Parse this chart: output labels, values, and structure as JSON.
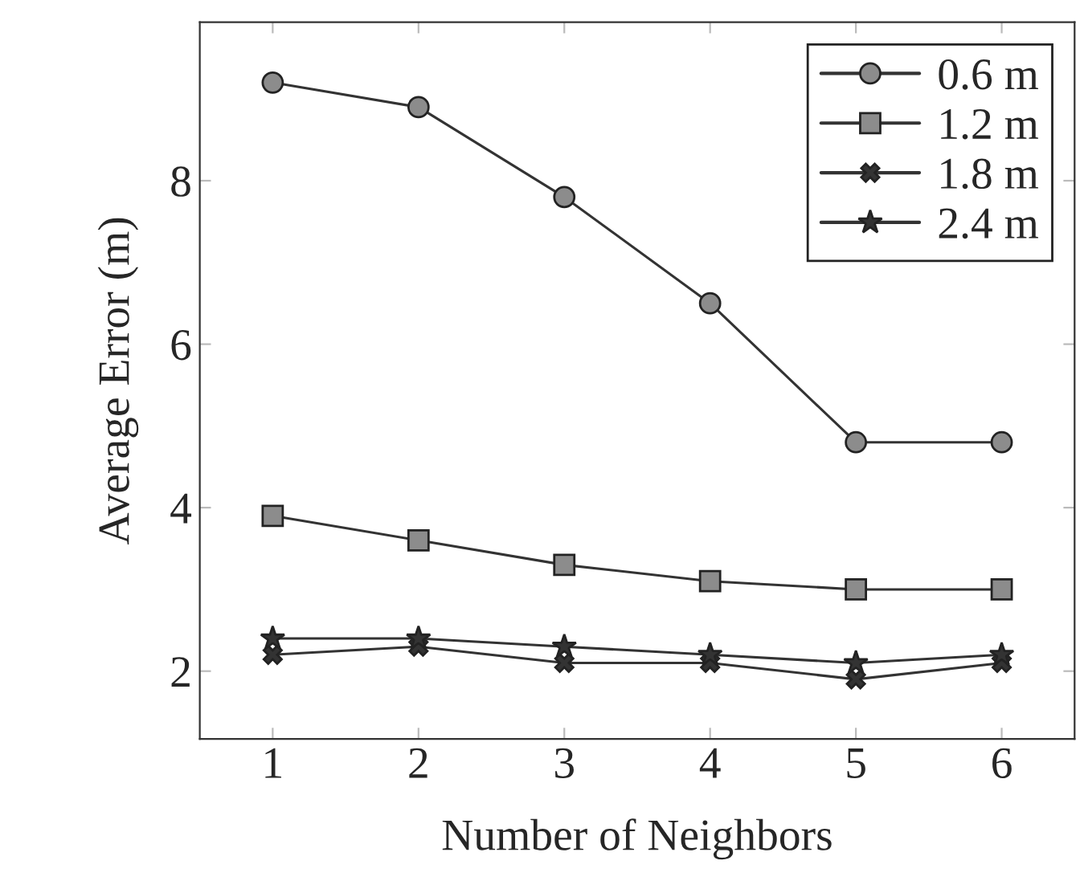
{
  "chart_data": {
    "type": "line",
    "xlabel": "Number of Neighbors",
    "ylabel": "Average Error (m)",
    "x": [
      1,
      2,
      3,
      4,
      5,
      6
    ],
    "series": [
      {
        "name": "0.6 m",
        "color": "#333333",
        "marker": "circle",
        "values": [
          9.2,
          8.9,
          7.8,
          6.5,
          4.8,
          4.8
        ]
      },
      {
        "name": "1.2 m",
        "color": "#333333",
        "marker": "square",
        "values": [
          3.9,
          3.6,
          3.3,
          3.1,
          3.0,
          3.0
        ]
      },
      {
        "name": "1.8 m",
        "color": "#333333",
        "marker": "cross",
        "values": [
          2.2,
          2.3,
          2.1,
          2.1,
          1.9,
          2.1
        ]
      },
      {
        "name": "2.4 m",
        "color": "#333333",
        "marker": "star",
        "values": [
          2.4,
          2.4,
          2.3,
          2.2,
          2.1,
          2.2
        ]
      }
    ],
    "xlim": [
      0.5,
      6.5
    ],
    "ylim": [
      1.17,
      9.94
    ],
    "xticks": [
      1,
      2,
      3,
      4,
      5,
      6
    ],
    "yticks": [
      2,
      4,
      6,
      8
    ],
    "grid": false,
    "legend": "top right",
    "line_style": "solid"
  }
}
